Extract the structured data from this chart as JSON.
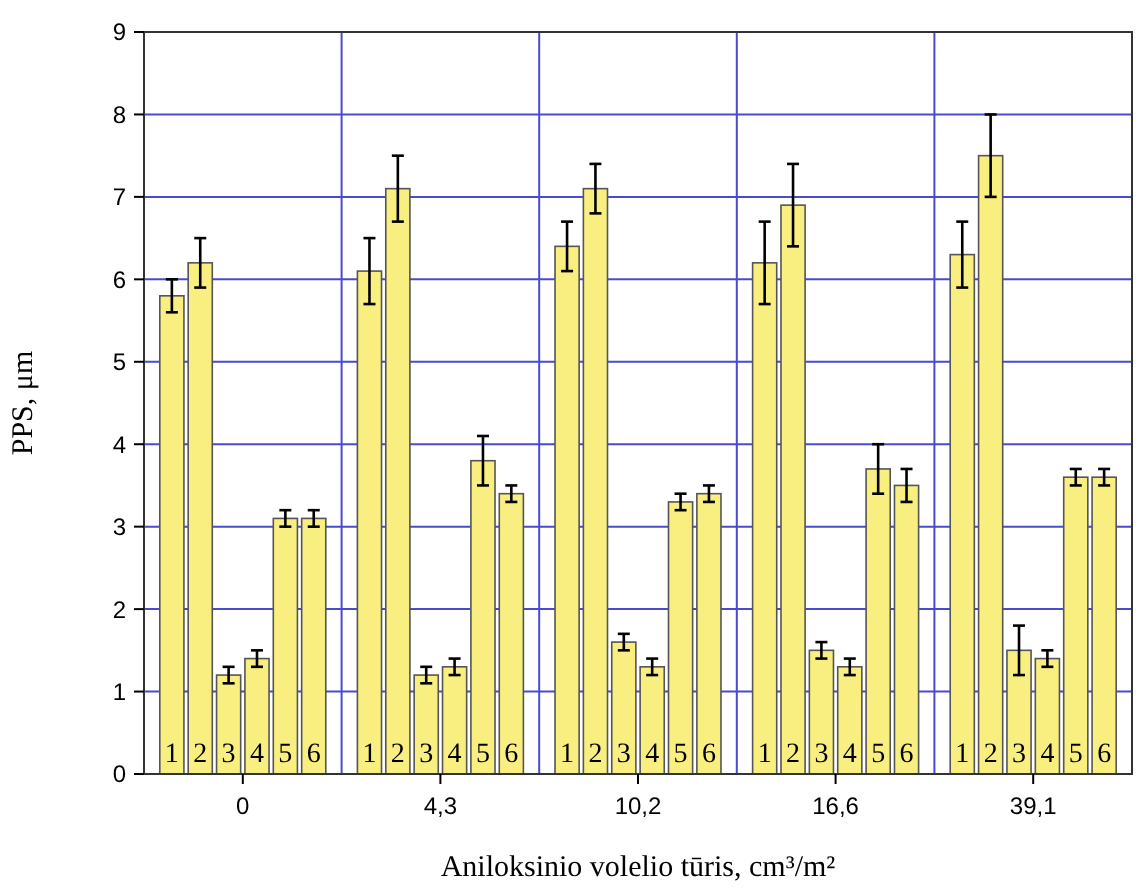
{
  "chart_data": {
    "type": "bar",
    "xlabel": "Aniloksinio volelio tūris, cm³/m²",
    "ylabel": "PPS, μm",
    "categories": [
      "0",
      "4,3",
      "10,2",
      "16,6",
      "39,1"
    ],
    "series": [
      {
        "name": "1",
        "color": "#f8ef80",
        "values": [
          5.8,
          6.1,
          6.4,
          6.2,
          6.3
        ],
        "errors": [
          0.2,
          0.4,
          0.3,
          0.5,
          0.4
        ]
      },
      {
        "name": "2",
        "color": "#f8ef80",
        "values": [
          6.2,
          7.1,
          7.1,
          6.9,
          7.5
        ],
        "errors": [
          0.3,
          0.4,
          0.3,
          0.5,
          0.5
        ]
      },
      {
        "name": "3",
        "color": "#f8ef80",
        "values": [
          1.2,
          1.2,
          1.6,
          1.5,
          1.5
        ],
        "errors": [
          0.1,
          0.1,
          0.1,
          0.1,
          0.3
        ]
      },
      {
        "name": "4",
        "color": "#f8ef80",
        "values": [
          1.4,
          1.3,
          1.3,
          1.3,
          1.4
        ],
        "errors": [
          0.1,
          0.1,
          0.1,
          0.1,
          0.1
        ]
      },
      {
        "name": "5",
        "color": "#f8ef80",
        "values": [
          3.1,
          3.8,
          3.3,
          3.7,
          3.6
        ],
        "errors": [
          0.1,
          0.3,
          0.1,
          0.3,
          0.1
        ]
      },
      {
        "name": "6",
        "color": "#f8ef80",
        "values": [
          3.1,
          3.4,
          3.4,
          3.5,
          3.6
        ],
        "errors": [
          0.1,
          0.1,
          0.1,
          0.2,
          0.1
        ]
      }
    ],
    "ylim": [
      0,
      9
    ],
    "yticks": [
      0,
      1,
      2,
      3,
      4,
      5,
      6,
      7,
      8,
      9
    ],
    "grid": true
  }
}
